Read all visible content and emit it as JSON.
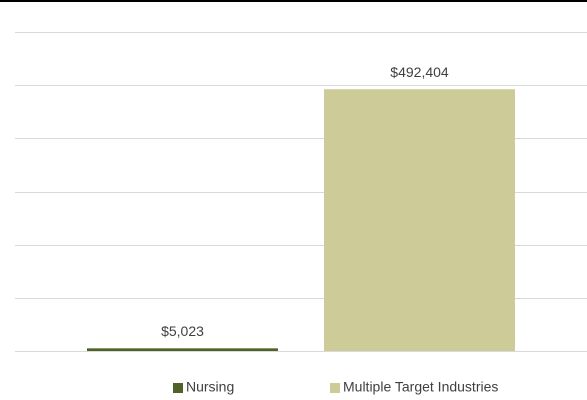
{
  "chart_data": {
    "type": "bar",
    "series": [
      {
        "name": "Nursing",
        "color": "#4f6228",
        "values": [
          5023
        ],
        "value_labels": [
          "$5,023"
        ]
      },
      {
        "name": "Multiple Target Industries",
        "color": "#cdcb97",
        "values": [
          492404
        ],
        "value_labels": [
          "$492,404"
        ]
      }
    ],
    "ylim": [
      0,
      600000
    ],
    "yticks": [
      0,
      100000,
      200000,
      300000,
      400000,
      500000,
      600000
    ],
    "grid": true,
    "legend": "bottom"
  }
}
